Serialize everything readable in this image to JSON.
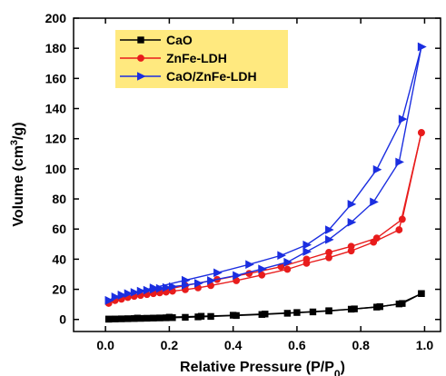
{
  "chart_data": {
    "type": "line",
    "xlabel": "Relative Pressure (P/P0)",
    "ylabel": "Volume (cm3/g)",
    "xlim": [
      -0.1,
      1.05
    ],
    "ylim": [
      -8,
      200
    ],
    "xticks": [
      "0.0",
      "0.2",
      "0.4",
      "0.6",
      "0.8",
      "1.0"
    ],
    "yticks": [
      "0",
      "20",
      "40",
      "60",
      "80",
      "100",
      "120",
      "140",
      "160",
      "180",
      "200"
    ],
    "xtick_values": [
      0.0,
      0.2,
      0.4,
      0.6,
      0.8,
      1.0
    ],
    "ytick_values": [
      0,
      20,
      40,
      60,
      80,
      100,
      120,
      140,
      160,
      180,
      200
    ],
    "grid": false,
    "legend": {
      "placement": "top-left",
      "background": "#ffe97f"
    },
    "series": [
      {
        "name": "CaO",
        "color": "#000000",
        "marker": "square",
        "adsorption": {
          "x": [
            0.01,
            0.03,
            0.05,
            0.07,
            0.09,
            0.11,
            0.13,
            0.15,
            0.17,
            0.19,
            0.21,
            0.25,
            0.29,
            0.33,
            0.41,
            0.49,
            0.57,
            0.65,
            0.7,
            0.77,
            0.85,
            0.92,
            0.99
          ],
          "y": [
            0.2,
            0.3,
            0.4,
            0.5,
            0.6,
            0.7,
            0.8,
            0.9,
            1.0,
            1.1,
            1.2,
            1.4,
            1.7,
            2.0,
            2.6,
            3.3,
            4.1,
            5.0,
            5.6,
            6.8,
            8.2,
            10.3,
            17.2
          ]
        },
        "desorption": {
          "x": [
            0.99,
            0.93,
            0.86,
            0.78,
            0.7,
            0.6,
            0.5,
            0.4,
            0.3,
            0.2,
            0.1,
            0.01
          ],
          "y": [
            17.2,
            10.6,
            8.5,
            7.0,
            5.8,
            4.6,
            3.6,
            2.8,
            2.1,
            1.5,
            0.9,
            0.2
          ]
        }
      },
      {
        "name": "ZnFe-LDH",
        "color": "#e81c1c",
        "marker": "circle",
        "adsorption": {
          "x": [
            0.01,
            0.03,
            0.05,
            0.07,
            0.09,
            0.11,
            0.13,
            0.15,
            0.17,
            0.19,
            0.21,
            0.25,
            0.29,
            0.33,
            0.41,
            0.49,
            0.57,
            0.63,
            0.7,
            0.77,
            0.84,
            0.92,
            0.99
          ],
          "y": [
            10.8,
            12.6,
            13.8,
            14.6,
            15.4,
            16.0,
            16.6,
            17.2,
            17.7,
            18.2,
            18.8,
            19.8,
            21.0,
            22.5,
            25.8,
            29.5,
            33.3,
            37.3,
            41.0,
            45.5,
            51.3,
            59.5,
            124.0
          ]
        },
        "desorption": {
          "x": [
            0.99,
            0.93,
            0.85,
            0.77,
            0.7,
            0.63,
            0.55,
            0.45,
            0.35,
            0.25,
            0.15,
            0.05,
            0.01
          ],
          "y": [
            124.0,
            66.5,
            54.0,
            48.5,
            44.5,
            40.0,
            35.0,
            30.5,
            26.5,
            22.5,
            18.0,
            13.5,
            10.8
          ]
        }
      },
      {
        "name": "CaO/ZnFe-LDH",
        "color": "#1b2ee0",
        "marker": "triangle-right",
        "adsorption": {
          "x": [
            0.01,
            0.03,
            0.05,
            0.07,
            0.09,
            0.11,
            0.13,
            0.15,
            0.17,
            0.19,
            0.21,
            0.25,
            0.29,
            0.33,
            0.41,
            0.49,
            0.57,
            0.63,
            0.7,
            0.77,
            0.84,
            0.92,
            0.99
          ],
          "y": [
            12.6,
            15.0,
            16.2,
            17.2,
            18.0,
            18.8,
            19.4,
            20.0,
            20.6,
            21.2,
            21.8,
            22.8,
            24.0,
            25.8,
            29.2,
            33.5,
            38.0,
            45.0,
            53.0,
            64.5,
            78.0,
            104.5,
            181.0
          ]
        },
        "desorption": {
          "x": [
            0.99,
            0.93,
            0.85,
            0.77,
            0.7,
            0.63,
            0.55,
            0.45,
            0.35,
            0.25,
            0.15,
            0.05,
            0.01
          ],
          "y": [
            181.0,
            133.0,
            99.5,
            76.5,
            59.5,
            49.5,
            42.5,
            36.5,
            31.0,
            26.0,
            21.0,
            16.0,
            12.6
          ]
        }
      }
    ]
  }
}
